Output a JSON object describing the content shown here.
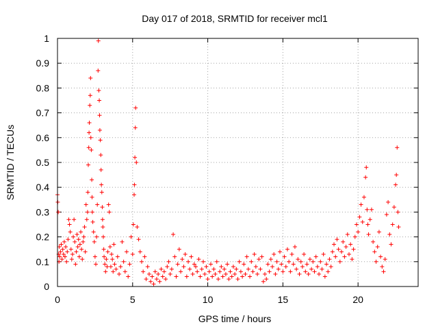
{
  "chart_data": {
    "type": "scatter",
    "title": "Day 017 of 2018, SRMTID for receiver mcl1",
    "xlabel": "GPS time / hours",
    "ylabel": "SRMTID / TECUs",
    "xlim": [
      0,
      24
    ],
    "ylim": [
      0,
      1
    ],
    "xticks": [
      0,
      5,
      10,
      15,
      20
    ],
    "xtick_labels": [
      "0",
      "5",
      "10",
      "15",
      "20"
    ],
    "yticks": [
      0,
      0.1,
      0.2,
      0.3,
      0.4,
      0.5,
      0.6,
      0.7,
      0.8,
      0.9,
      1
    ],
    "ytick_labels": [
      "0",
      "0.1",
      "0.2",
      "0.3",
      "0.4",
      "0.5",
      "0.6",
      "0.7",
      "0.8",
      "0.9",
      "1"
    ],
    "grid": true,
    "marker": "+",
    "color": "#ff0000",
    "series": [
      {
        "name": "SRMTID",
        "x": [
          0.0,
          0.02,
          0.05,
          0.08,
          0.1,
          0.12,
          0.15,
          0.2,
          0.25,
          0.3,
          0.35,
          0.4,
          0.45,
          0.5,
          0.55,
          0.6,
          0.65,
          0.7,
          0.75,
          0.8,
          0.85,
          0.9,
          0.95,
          1.0,
          1.05,
          1.1,
          1.15,
          1.2,
          1.25,
          1.3,
          1.35,
          1.4,
          1.45,
          1.5,
          1.55,
          1.6,
          1.65,
          1.7,
          1.75,
          1.8,
          1.85,
          1.9,
          1.95,
          2.0,
          2.02,
          2.05,
          2.08,
          2.1,
          2.12,
          2.15,
          2.18,
          2.2,
          2.22,
          2.25,
          2.28,
          2.3,
          2.32,
          2.35,
          2.4,
          2.45,
          2.5,
          2.55,
          2.6,
          2.65,
          2.7,
          2.72,
          2.75,
          2.78,
          2.8,
          2.82,
          2.85,
          2.88,
          2.9,
          2.92,
          2.95,
          2.98,
          3.0,
          3.02,
          3.05,
          3.08,
          3.1,
          3.15,
          3.2,
          3.25,
          3.3,
          3.35,
          3.4,
          3.45,
          3.5,
          3.55,
          3.6,
          3.65,
          3.7,
          3.75,
          3.8,
          3.9,
          4.0,
          4.1,
          4.2,
          4.3,
          4.4,
          4.5,
          4.6,
          4.7,
          4.8,
          4.9,
          5.0,
          5.05,
          5.1,
          5.12,
          5.15,
          5.18,
          5.2,
          5.25,
          5.3,
          5.4,
          5.5,
          5.6,
          5.7,
          5.8,
          5.9,
          6.0,
          6.1,
          6.2,
          6.3,
          6.4,
          6.5,
          6.6,
          6.7,
          6.8,
          6.9,
          7.0,
          7.1,
          7.2,
          7.3,
          7.4,
          7.5,
          7.6,
          7.7,
          7.8,
          7.9,
          8.0,
          8.1,
          8.2,
          8.3,
          8.4,
          8.5,
          8.6,
          8.7,
          8.8,
          8.9,
          9.0,
          9.1,
          9.2,
          9.3,
          9.4,
          9.5,
          9.6,
          9.7,
          9.8,
          9.9,
          10.0,
          10.1,
          10.2,
          10.3,
          10.4,
          10.5,
          10.6,
          10.7,
          10.8,
          10.9,
          11.0,
          11.1,
          11.2,
          11.3,
          11.4,
          11.5,
          11.6,
          11.7,
          11.8,
          11.9,
          12.0,
          12.1,
          12.2,
          12.3,
          12.4,
          12.5,
          12.6,
          12.7,
          12.8,
          12.9,
          13.0,
          13.1,
          13.2,
          13.3,
          13.4,
          13.5,
          13.6,
          13.7,
          13.8,
          13.9,
          14.0,
          14.1,
          14.2,
          14.3,
          14.4,
          14.5,
          14.6,
          14.7,
          14.8,
          14.9,
          15.0,
          15.1,
          15.2,
          15.3,
          15.4,
          15.5,
          15.6,
          15.7,
          15.8,
          15.9,
          16.0,
          16.1,
          16.2,
          16.3,
          16.4,
          16.5,
          16.6,
          16.7,
          16.8,
          16.9,
          17.0,
          17.1,
          17.2,
          17.3,
          17.4,
          17.5,
          17.6,
          17.7,
          17.8,
          17.9,
          18.0,
          18.1,
          18.2,
          18.3,
          18.4,
          18.5,
          18.6,
          18.7,
          18.8,
          18.9,
          19.0,
          19.1,
          19.2,
          19.3,
          19.4,
          19.5,
          19.6,
          19.7,
          19.8,
          19.9,
          20.0,
          20.1,
          20.2,
          20.3,
          20.4,
          20.5,
          20.55,
          20.6,
          20.65,
          20.7,
          20.8,
          20.9,
          21.0,
          21.1,
          21.2,
          21.3,
          21.4,
          21.5,
          21.6,
          21.7,
          21.8,
          21.9,
          22.0,
          22.1,
          22.2,
          22.3,
          22.4,
          22.5,
          22.55,
          22.6,
          22.65,
          22.7
        ],
        "y": [
          0.37,
          0.34,
          0.3,
          0.13,
          0.1,
          0.16,
          0.12,
          0.14,
          0.17,
          0.11,
          0.15,
          0.13,
          0.18,
          0.12,
          0.16,
          0.1,
          0.14,
          0.19,
          0.27,
          0.25,
          0.22,
          0.15,
          0.11,
          0.13,
          0.2,
          0.27,
          0.18,
          0.09,
          0.14,
          0.21,
          0.16,
          0.19,
          0.12,
          0.17,
          0.22,
          0.15,
          0.11,
          0.18,
          0.2,
          0.24,
          0.14,
          0.33,
          0.27,
          0.3,
          0.38,
          0.49,
          0.56,
          0.62,
          0.66,
          0.73,
          0.77,
          0.84,
          0.6,
          0.55,
          0.43,
          0.36,
          0.3,
          0.26,
          0.22,
          0.18,
          0.12,
          0.09,
          0.2,
          0.33,
          0.87,
          0.99,
          0.79,
          0.75,
          0.69,
          0.63,
          0.59,
          0.53,
          0.47,
          0.41,
          0.38,
          0.32,
          0.27,
          0.24,
          0.2,
          0.15,
          0.12,
          0.09,
          0.06,
          0.11,
          0.08,
          0.14,
          0.33,
          0.3,
          0.16,
          0.08,
          0.13,
          0.11,
          0.06,
          0.17,
          0.09,
          0.07,
          0.12,
          0.05,
          0.08,
          0.18,
          0.1,
          0.06,
          0.14,
          0.04,
          0.09,
          0.2,
          0.13,
          0.25,
          0.37,
          0.41,
          0.52,
          0.64,
          0.72,
          0.5,
          0.24,
          0.19,
          0.14,
          0.1,
          0.06,
          0.12,
          0.03,
          0.08,
          0.05,
          0.02,
          0.04,
          0.01,
          0.06,
          0.03,
          0.05,
          0.02,
          0.07,
          0.04,
          0.06,
          0.03,
          0.08,
          0.1,
          0.05,
          0.07,
          0.21,
          0.12,
          0.04,
          0.09,
          0.15,
          0.06,
          0.11,
          0.08,
          0.13,
          0.04,
          0.1,
          0.07,
          0.12,
          0.05,
          0.09,
          0.08,
          0.06,
          0.11,
          0.04,
          0.07,
          0.1,
          0.05,
          0.08,
          0.03,
          0.06,
          0.09,
          0.04,
          0.07,
          0.05,
          0.1,
          0.03,
          0.06,
          0.08,
          0.04,
          0.07,
          0.05,
          0.09,
          0.03,
          0.06,
          0.04,
          0.08,
          0.05,
          0.07,
          0.03,
          0.1,
          0.06,
          0.04,
          0.09,
          0.05,
          0.12,
          0.07,
          0.04,
          0.1,
          0.06,
          0.13,
          0.08,
          0.05,
          0.11,
          0.07,
          0.12,
          0.02,
          0.05,
          0.03,
          0.09,
          0.06,
          0.11,
          0.08,
          0.13,
          0.05,
          0.1,
          0.07,
          0.14,
          0.09,
          0.06,
          0.12,
          0.08,
          0.15,
          0.1,
          0.06,
          0.13,
          0.09,
          0.16,
          0.07,
          0.11,
          0.05,
          0.1,
          0.08,
          0.13,
          0.06,
          0.09,
          0.05,
          0.11,
          0.07,
          0.1,
          0.06,
          0.12,
          0.08,
          0.05,
          0.1,
          0.07,
          0.13,
          0.04,
          0.09,
          0.06,
          0.11,
          0.08,
          0.14,
          0.17,
          0.12,
          0.19,
          0.15,
          0.1,
          0.14,
          0.18,
          0.12,
          0.16,
          0.21,
          0.13,
          0.17,
          0.11,
          0.15,
          0.2,
          0.25,
          0.22,
          0.28,
          0.33,
          0.26,
          0.36,
          0.44,
          0.48,
          0.31,
          0.25,
          0.21,
          0.27,
          0.31,
          0.18,
          0.14,
          0.1,
          0.16,
          0.22,
          0.12,
          0.08,
          0.06,
          0.11,
          0.29,
          0.34,
          0.21,
          0.17,
          0.25,
          0.32,
          0.41,
          0.45,
          0.56,
          0.3,
          0.24
        ]
      }
    ]
  }
}
